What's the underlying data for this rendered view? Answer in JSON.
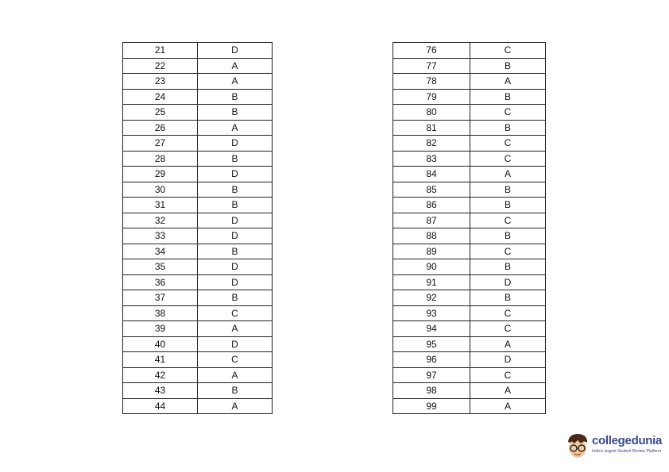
{
  "tables": [
    {
      "rows": [
        {
          "q": "21",
          "a": "D"
        },
        {
          "q": "22",
          "a": "A"
        },
        {
          "q": "23",
          "a": "A"
        },
        {
          "q": "24",
          "a": "B"
        },
        {
          "q": "25",
          "a": "B"
        },
        {
          "q": "26",
          "a": "A"
        },
        {
          "q": "27",
          "a": "D"
        },
        {
          "q": "28",
          "a": "B"
        },
        {
          "q": "29",
          "a": "D"
        },
        {
          "q": "30",
          "a": "B"
        },
        {
          "q": "31",
          "a": "B"
        },
        {
          "q": "32",
          "a": "D"
        },
        {
          "q": "33",
          "a": "D"
        },
        {
          "q": "34",
          "a": "B"
        },
        {
          "q": "35",
          "a": "D"
        },
        {
          "q": "36",
          "a": "D"
        },
        {
          "q": "37",
          "a": "B"
        },
        {
          "q": "38",
          "a": "C"
        },
        {
          "q": "39",
          "a": "A"
        },
        {
          "q": "40",
          "a": "D"
        },
        {
          "q": "41",
          "a": "C"
        },
        {
          "q": "42",
          "a": "A"
        },
        {
          "q": "43",
          "a": "B"
        },
        {
          "q": "44",
          "a": "A"
        }
      ]
    },
    {
      "rows": [
        {
          "q": "76",
          "a": "C"
        },
        {
          "q": "77",
          "a": "B"
        },
        {
          "q": "78",
          "a": "A"
        },
        {
          "q": "79",
          "a": "B"
        },
        {
          "q": "80",
          "a": "C"
        },
        {
          "q": "81",
          "a": "B"
        },
        {
          "q": "82",
          "a": "C"
        },
        {
          "q": "83",
          "a": "C"
        },
        {
          "q": "84",
          "a": "A"
        },
        {
          "q": "85",
          "a": "B"
        },
        {
          "q": "86",
          "a": "B"
        },
        {
          "q": "87",
          "a": "C"
        },
        {
          "q": "88",
          "a": "B"
        },
        {
          "q": "89",
          "a": "C"
        },
        {
          "q": "90",
          "a": "B"
        },
        {
          "q": "91",
          "a": "D"
        },
        {
          "q": "92",
          "a": "B"
        },
        {
          "q": "93",
          "a": "C"
        },
        {
          "q": "94",
          "a": "C"
        },
        {
          "q": "95",
          "a": "A"
        },
        {
          "q": "96",
          "a": "D"
        },
        {
          "q": "97",
          "a": "C"
        },
        {
          "q": "98",
          "a": "A"
        },
        {
          "q": "99",
          "a": "A"
        }
      ]
    }
  ],
  "logo": {
    "name": "collegedunia",
    "tagline": "India's largest Student Review Platform",
    "brand_color": "#3b4a8c"
  }
}
